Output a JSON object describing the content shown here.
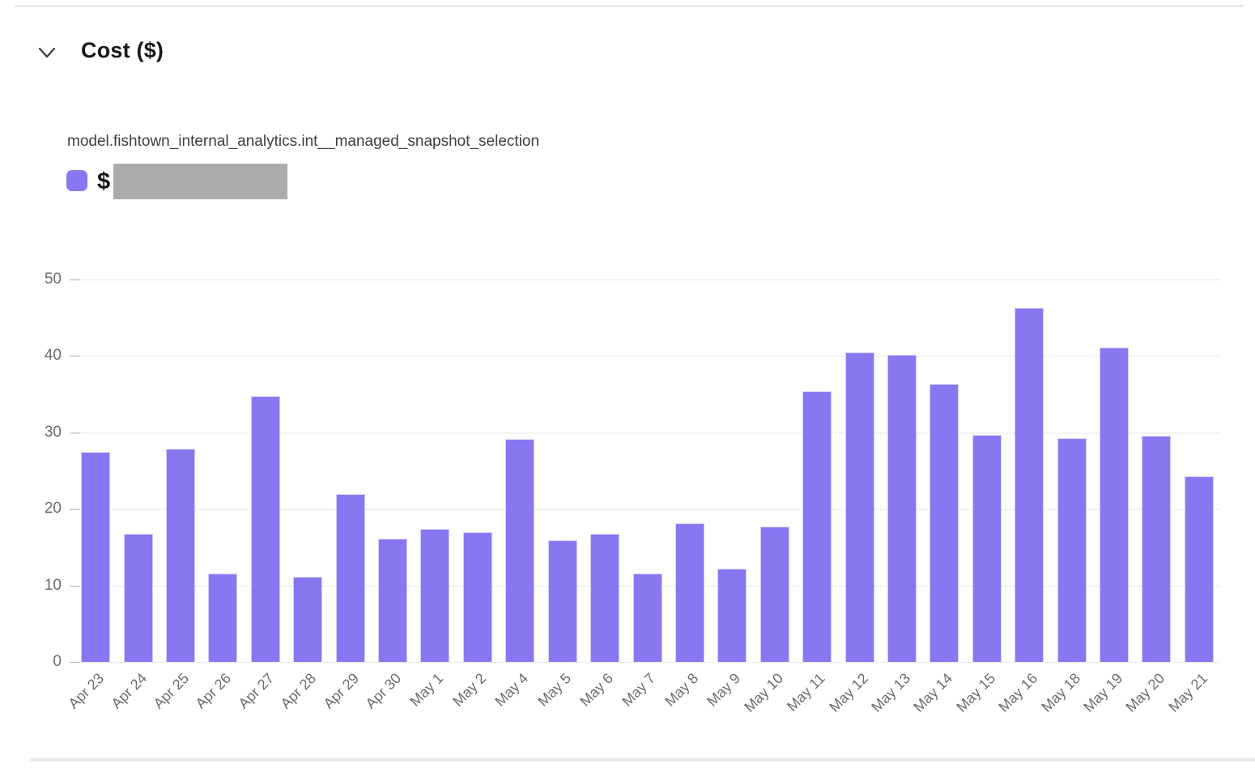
{
  "header": {
    "title": "Cost ($)",
    "icon": "chevron-down-icon"
  },
  "legend": {
    "series_name": "model.fishtown_internal_analytics.int__managed_snapshot_selection",
    "value_prefix": "$",
    "value_redacted": true,
    "swatch_color": "#8777f1",
    "redaction_color": "#ababab"
  },
  "chart_data": {
    "type": "bar",
    "title": "Cost ($)",
    "xlabel": "",
    "ylabel": "",
    "ylim": [
      0,
      50
    ],
    "yticks": [
      0,
      10,
      20,
      30,
      40,
      50
    ],
    "grid": true,
    "legend_position": "top-left",
    "bar_color": "#8777f1",
    "categories": [
      "Apr 23",
      "Apr 24",
      "Apr 25",
      "Apr 26",
      "Apr 27",
      "Apr 28",
      "Apr 29",
      "Apr 30",
      "May 1",
      "May 2",
      "May 4",
      "May 5",
      "May 6",
      "May 7",
      "May 8",
      "May 9",
      "May 10",
      "May 11",
      "May 12",
      "May 13",
      "May 14",
      "May 15",
      "May 16",
      "May 18",
      "May 19",
      "May 20",
      "May 21"
    ],
    "series": [
      {
        "name": "model.fishtown_internal_analytics.int__managed_snapshot_selection",
        "values": [
          27.4,
          16.7,
          27.9,
          11.5,
          34.7,
          11.1,
          21.9,
          16.1,
          17.4,
          17.0,
          29.1,
          15.9,
          16.7,
          11.5,
          18.1,
          12.2,
          17.7,
          35.4,
          40.5,
          40.2,
          36.3,
          29.7,
          46.3,
          29.2,
          41.1,
          29.6,
          24.3
        ]
      }
    ]
  }
}
